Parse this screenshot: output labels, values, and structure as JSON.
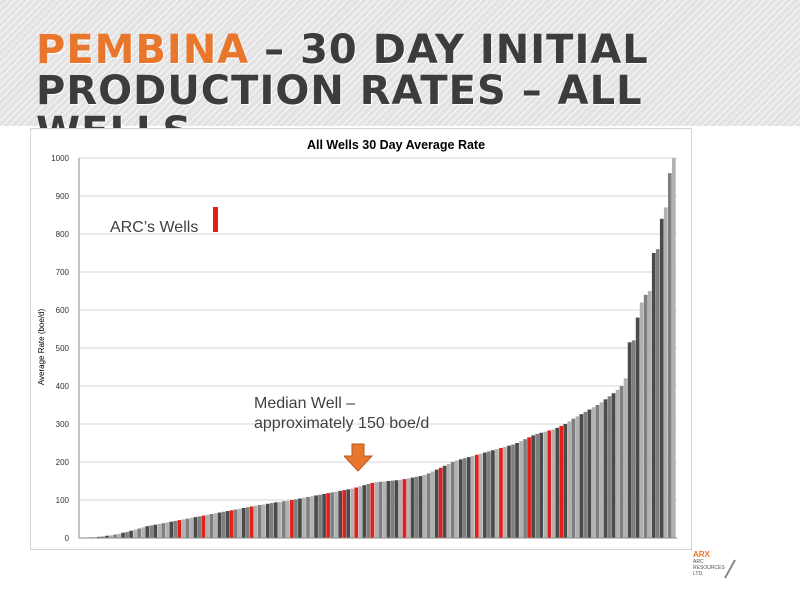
{
  "slide": {
    "title_accent": "PEMBINA",
    "title_rest_line1": " – 30 DAY INITIAL",
    "title_line2": "PRODUCTION RATES – ALL WELLS"
  },
  "annotations": {
    "arc_wells": "ARC’s Wells",
    "median_line1": "Median Well –",
    "median_line2": "approximately 150 boe/d"
  },
  "logo": {
    "name": "ARX",
    "subtitle": "ARC RESOURCES LTD."
  },
  "colors": {
    "accent_orange": "#e8762d",
    "title_dark": "#3c3c3c",
    "arc_red": "#e0201b",
    "bar_dark": "#4a4a4a",
    "bar_mid": "#7f7f7f",
    "bar_light": "#b2b2b2"
  },
  "chart_data": {
    "type": "bar",
    "title": "All Wells 30 Day Average Rate",
    "ylabel": "Average Rate (boe/d)",
    "xlabel": "",
    "ylim": [
      0,
      1000
    ],
    "yticks": [
      0,
      100,
      200,
      300,
      400,
      500,
      600,
      700,
      800,
      900,
      1000
    ],
    "grid": true,
    "legend": "none",
    "series": [
      {
        "values": [
          0,
          1,
          2,
          2,
          3,
          4,
          6,
          7,
          9,
          11,
          14,
          16,
          19,
          22,
          25,
          28,
          31,
          33,
          35,
          37,
          39,
          41,
          43,
          45,
          47,
          49,
          51,
          53,
          55,
          57,
          59,
          61,
          63,
          65,
          67,
          69,
          71,
          73,
          75,
          77,
          79,
          81,
          83,
          85,
          87,
          88,
          90,
          92,
          94,
          95,
          97,
          98,
          100,
          102,
          104,
          106,
          108,
          110,
          112,
          114,
          116,
          118,
          120,
          122,
          124,
          126,
          128,
          130,
          133,
          136,
          139,
          142,
          145,
          147,
          148,
          149,
          150,
          151,
          152,
          153,
          155,
          157,
          159,
          161,
          163,
          166,
          170,
          175,
          180,
          185,
          190,
          195,
          200,
          204,
          207,
          210,
          213,
          216,
          219,
          222,
          225,
          228,
          231,
          234,
          237,
          240,
          243,
          246,
          250,
          255,
          260,
          265,
          270,
          274,
          277,
          280,
          283,
          286,
          290,
          295,
          300,
          307,
          314,
          320,
          326,
          332,
          338,
          344,
          350,
          357,
          365,
          373,
          381,
          390,
          400,
          420,
          515,
          520,
          580,
          620,
          640,
          650,
          750,
          760,
          840,
          870,
          960,
          1000
        ],
        "arc_wells": [
          24,
          30,
          37,
          42,
          52,
          61,
          65,
          68,
          72,
          80,
          89,
          98,
          104,
          111,
          116,
          119
        ]
      }
    ]
  }
}
